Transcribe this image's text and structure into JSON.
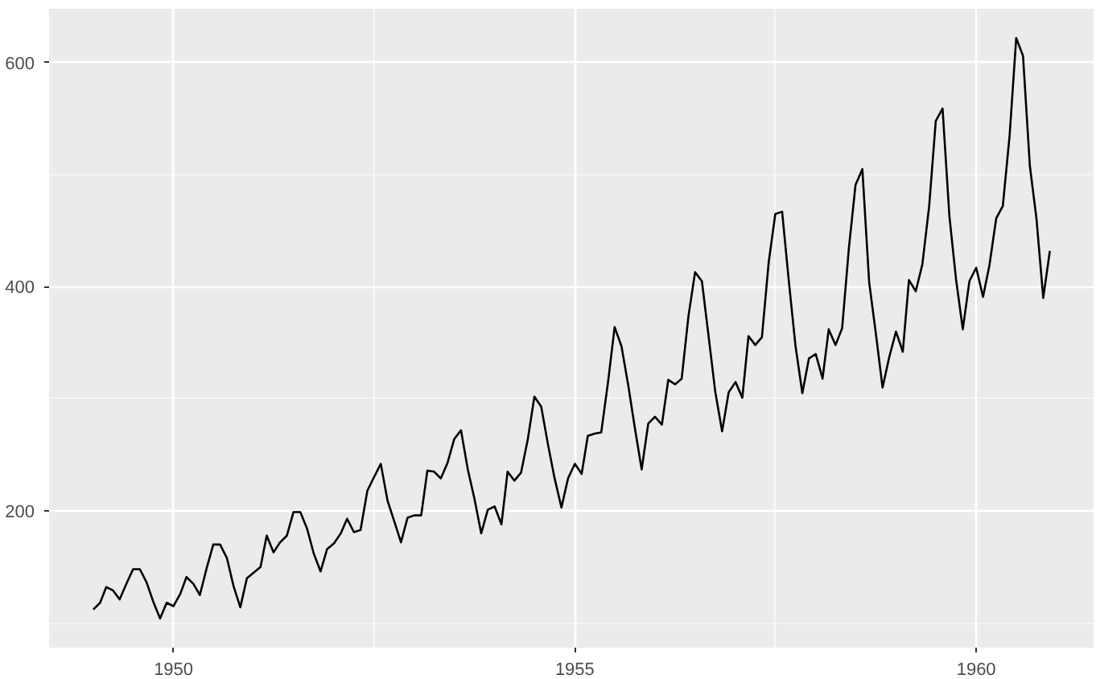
{
  "chart_data": {
    "type": "line",
    "color": "#000000",
    "grid": true,
    "line_style": "solid",
    "marker": "none",
    "x": [
      "1949-01",
      "1949-02",
      "1949-03",
      "1949-04",
      "1949-05",
      "1949-06",
      "1949-07",
      "1949-08",
      "1949-09",
      "1949-10",
      "1949-11",
      "1949-12",
      "1950-01",
      "1950-02",
      "1950-03",
      "1950-04",
      "1950-05",
      "1950-06",
      "1950-07",
      "1950-08",
      "1950-09",
      "1950-10",
      "1950-11",
      "1950-12",
      "1951-01",
      "1951-02",
      "1951-03",
      "1951-04",
      "1951-05",
      "1951-06",
      "1951-07",
      "1951-08",
      "1951-09",
      "1951-10",
      "1951-11",
      "1951-12",
      "1952-01",
      "1952-02",
      "1952-03",
      "1952-04",
      "1952-05",
      "1952-06",
      "1952-07",
      "1952-08",
      "1952-09",
      "1952-10",
      "1952-11",
      "1952-12",
      "1953-01",
      "1953-02",
      "1953-03",
      "1953-04",
      "1953-05",
      "1953-06",
      "1953-07",
      "1953-08",
      "1953-09",
      "1953-10",
      "1953-11",
      "1953-12",
      "1954-01",
      "1954-02",
      "1954-03",
      "1954-04",
      "1954-05",
      "1954-06",
      "1954-07",
      "1954-08",
      "1954-09",
      "1954-10",
      "1954-11",
      "1954-12",
      "1955-01",
      "1955-02",
      "1955-03",
      "1955-04",
      "1955-05",
      "1955-06",
      "1955-07",
      "1955-08",
      "1955-09",
      "1955-10",
      "1955-11",
      "1955-12",
      "1956-01",
      "1956-02",
      "1956-03",
      "1956-04",
      "1956-05",
      "1956-06",
      "1956-07",
      "1956-08",
      "1956-09",
      "1956-10",
      "1956-11",
      "1956-12",
      "1957-01",
      "1957-02",
      "1957-03",
      "1957-04",
      "1957-05",
      "1957-06",
      "1957-07",
      "1957-08",
      "1957-09",
      "1957-10",
      "1957-11",
      "1957-12",
      "1958-01",
      "1958-02",
      "1958-03",
      "1958-04",
      "1958-05",
      "1958-06",
      "1958-07",
      "1958-08",
      "1958-09",
      "1958-10",
      "1958-11",
      "1958-12",
      "1959-01",
      "1959-02",
      "1959-03",
      "1959-04",
      "1959-05",
      "1959-06",
      "1959-07",
      "1959-08",
      "1959-09",
      "1959-10",
      "1959-11",
      "1959-12",
      "1960-01",
      "1960-02",
      "1960-03",
      "1960-04",
      "1960-05",
      "1960-06",
      "1960-07",
      "1960-08",
      "1960-09",
      "1960-10",
      "1960-11",
      "1960-12"
    ],
    "values": [
      112,
      118,
      132,
      129,
      121,
      135,
      148,
      148,
      136,
      119,
      104,
      118,
      115,
      126,
      141,
      135,
      125,
      149,
      170,
      170,
      158,
      133,
      114,
      140,
      145,
      150,
      178,
      163,
      172,
      178,
      199,
      199,
      184,
      162,
      146,
      166,
      171,
      180,
      193,
      181,
      183,
      218,
      230,
      242,
      209,
      191,
      172,
      194,
      196,
      196,
      236,
      235,
      229,
      243,
      264,
      272,
      237,
      211,
      180,
      201,
      204,
      188,
      235,
      227,
      234,
      264,
      302,
      293,
      259,
      229,
      203,
      229,
      242,
      233,
      267,
      269,
      270,
      315,
      364,
      347,
      312,
      274,
      237,
      278,
      284,
      277,
      317,
      313,
      318,
      374,
      413,
      405,
      355,
      306,
      271,
      306,
      315,
      301,
      356,
      348,
      355,
      422,
      465,
      467,
      404,
      347,
      305,
      336,
      340,
      318,
      362,
      348,
      363,
      435,
      491,
      505,
      404,
      359,
      310,
      337,
      360,
      342,
      406,
      396,
      420,
      472,
      548,
      559,
      463,
      407,
      362,
      405,
      417,
      391,
      419,
      461,
      472,
      535,
      622,
      606,
      508,
      461,
      390,
      432
    ],
    "xlim": [
      "1948-06-14",
      "1961-06-18"
    ],
    "ylim": [
      78,
      648
    ],
    "xticks": [
      {
        "value": "1950-01-01",
        "label": "1950"
      },
      {
        "value": "1952-07-02",
        "label": null
      },
      {
        "value": "1955-01-01",
        "label": "1955"
      },
      {
        "value": "1957-07-02",
        "label": null
      },
      {
        "value": "1960-01-01",
        "label": "1960"
      }
    ],
    "yticks": [
      {
        "value": 100,
        "label": null
      },
      200,
      {
        "value": 300,
        "label": null
      },
      400,
      {
        "value": 500,
        "label": null
      },
      600
    ]
  }
}
